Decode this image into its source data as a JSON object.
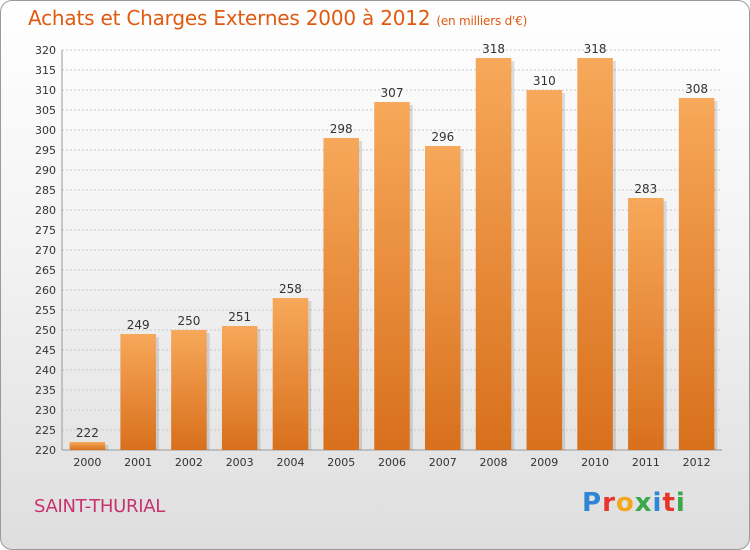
{
  "header": {
    "title": "Achats et Charges Externes 2000 à 2012",
    "subtitle": "(en milliers d'€)"
  },
  "footer": {
    "city": "SAINT-THURIAL",
    "logo_text": "Proxiti"
  },
  "colors": {
    "title": "#e05a10",
    "city": "#c8336e",
    "bar_top": "#f7a85a",
    "bar_bottom": "#d8701c"
  },
  "chart_data": {
    "type": "bar",
    "categories": [
      "2000",
      "2001",
      "2002",
      "2003",
      "2004",
      "2005",
      "2006",
      "2007",
      "2008",
      "2009",
      "2010",
      "2011",
      "2012"
    ],
    "values": [
      222,
      249,
      250,
      251,
      258,
      298,
      307,
      296,
      318,
      310,
      318,
      283,
      308
    ],
    "ylim": [
      220,
      320
    ],
    "ytick_step": 5,
    "grid": true
  }
}
